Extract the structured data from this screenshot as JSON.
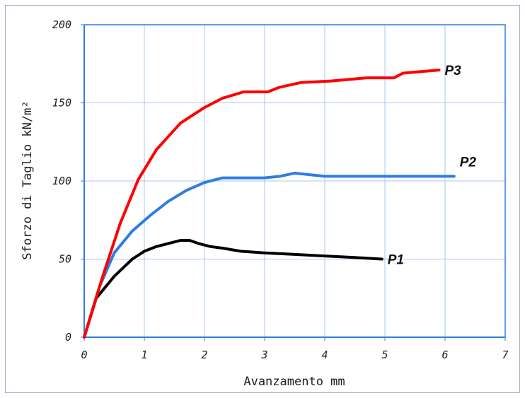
{
  "chart_data": {
    "type": "line",
    "title": "",
    "xlabel": "Avanzamento mm",
    "ylabel": "Sforzo di Taglio kN/m²",
    "xlim": [
      0,
      7
    ],
    "ylim": [
      0,
      200
    ],
    "xticks": [
      "0",
      "1",
      "2",
      "3",
      "4",
      "5",
      "6",
      "7"
    ],
    "yticks": [
      "0",
      "50",
      "100",
      "150",
      "200"
    ],
    "grid": true,
    "legend": "labels at line ends",
    "series": [
      {
        "name": "P1",
        "color": "#000000",
        "x": [
          0,
          0.2,
          0.5,
          0.8,
          1.0,
          1.2,
          1.4,
          1.6,
          1.75,
          1.9,
          2.1,
          2.3,
          2.6,
          3.0,
          3.5,
          4.0,
          4.5,
          4.95
        ],
        "y": [
          0,
          25,
          39,
          50,
          55,
          58,
          60,
          62,
          62,
          60,
          58,
          57,
          55,
          54,
          53,
          52,
          51,
          50
        ]
      },
      {
        "name": "P2",
        "color": "#2f7de1",
        "x": [
          0,
          0.25,
          0.5,
          0.8,
          1.1,
          1.4,
          1.7,
          2.0,
          2.3,
          2.6,
          3.0,
          3.25,
          3.5,
          4.0,
          4.5,
          5.0,
          5.5,
          6.15
        ],
        "y": [
          0,
          32,
          54,
          68,
          78,
          87,
          94,
          99,
          102,
          102,
          102,
          103,
          105,
          103,
          103,
          103,
          103,
          103
        ]
      },
      {
        "name": "P3",
        "color": "#ff0000",
        "x": [
          0,
          0.3,
          0.6,
          0.9,
          1.2,
          1.6,
          2.0,
          2.3,
          2.65,
          2.8,
          3.05,
          3.25,
          3.6,
          4.1,
          4.7,
          5.15,
          5.3,
          5.6,
          5.9
        ],
        "y": [
          0,
          38,
          73,
          101,
          120,
          137,
          147,
          153,
          157,
          157,
          157,
          160,
          163,
          164,
          166,
          166,
          169,
          170,
          171
        ]
      }
    ]
  }
}
